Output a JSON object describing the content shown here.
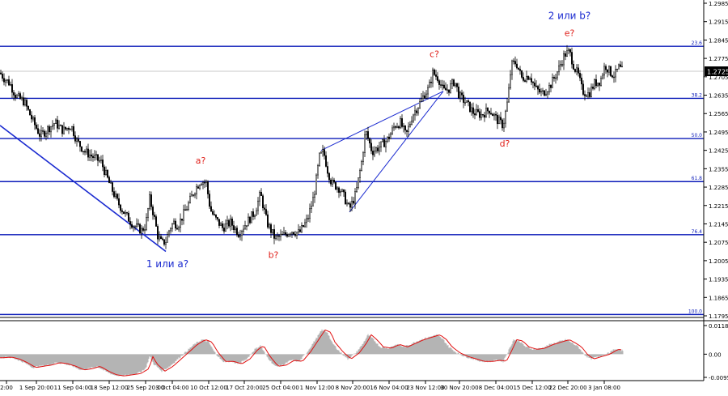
{
  "colors": {
    "background": "#ffffff",
    "candles": "#000000",
    "fib_lines": "#0a1ab8",
    "trendlines": "#1a2ad0",
    "wave_labels_red": "#e0201a",
    "wave_labels_blue": "#1a2ad0",
    "oscillator_hist": "#b4b4b4",
    "oscillator_signal": "#e01010",
    "current_price_bg": "#000000"
  },
  "chart_data": [
    {
      "type": "candlestick",
      "title": "",
      "ylim": [
        1.1795,
        1.2985
      ],
      "grid": false,
      "y_ticks": [
        "1.2985",
        "1.2915",
        "1.2845",
        "1.2775",
        "1.2705",
        "1.2635",
        "1.2565",
        "1.2495",
        "1.2425",
        "1.2355",
        "1.2285",
        "1.2215",
        "1.2145",
        "1.2075",
        "1.2005",
        "1.1935",
        "1.1865",
        "1.1795"
      ],
      "x_ticks": [
        "2:00",
        "1 Sep 20:00",
        "11 Sep 04:00",
        "18 Sep 12:00",
        "25 Sep 20:00",
        "3 Oct 04:00",
        "10 Oct 12:00",
        "17 Oct 20:00",
        "25 Oct 04:00",
        "1 Nov 12:00",
        "8 Nov 20:00",
        "16 Nov 04:00",
        "23 Nov 12:00",
        "30 Nov 20:00",
        "8 Dec 04:00",
        "15 Dec 12:00",
        "22 Dec 20:00",
        "3 Jan 08:00"
      ],
      "current_price": "1.2725",
      "fib_levels": [
        {
          "label": "23.6",
          "price": 1.2821
        },
        {
          "label": "38.2",
          "price": 1.2623
        },
        {
          "label": "50.0",
          "price": 1.247
        },
        {
          "label": "61.8",
          "price": 1.2306
        },
        {
          "label": "76.4",
          "price": 1.2104
        },
        {
          "label": "100.0",
          "price": 1.18
        }
      ],
      "wave_labels": [
        {
          "text": "1 или a?",
          "color": "blue"
        },
        {
          "text": "a?",
          "color": "red"
        },
        {
          "text": "b?",
          "color": "red"
        },
        {
          "text": "c?",
          "color": "red"
        },
        {
          "text": "d?",
          "color": "red"
        },
        {
          "text": "2 или b?",
          "color": "blue"
        },
        {
          "text": "e?",
          "color": "red"
        }
      ],
      "path": [
        [
          0,
          1.272
        ],
        [
          5,
          1.27
        ],
        [
          12,
          1.268
        ],
        [
          20,
          1.263
        ],
        [
          30,
          1.261
        ],
        [
          40,
          1.254
        ],
        [
          50,
          1.248
        ],
        [
          60,
          1.251
        ],
        [
          68,
          1.253
        ],
        [
          78,
          1.25
        ],
        [
          88,
          1.252
        ],
        [
          95,
          1.246
        ],
        [
          105,
          1.242
        ],
        [
          115,
          1.24
        ],
        [
          125,
          1.238
        ],
        [
          135,
          1.23
        ],
        [
          145,
          1.223
        ],
        [
          155,
          1.218
        ],
        [
          165,
          1.214
        ],
        [
          175,
          1.212
        ],
        [
          180,
          1.214
        ],
        [
          185,
          1.224
        ],
        [
          190,
          1.218
        ],
        [
          195,
          1.21
        ],
        [
          200,
          1.207
        ],
        [
          205,
          1.208
        ],
        [
          210,
          1.213
        ],
        [
          215,
          1.215
        ],
        [
          220,
          1.214
        ],
        [
          230,
          1.22
        ],
        [
          240,
          1.227
        ],
        [
          248,
          1.231
        ],
        [
          255,
          1.23
        ],
        [
          260,
          1.22
        ],
        [
          265,
          1.217
        ],
        [
          275,
          1.213
        ],
        [
          285,
          1.215
        ],
        [
          295,
          1.211
        ],
        [
          305,
          1.215
        ],
        [
          315,
          1.219
        ],
        [
          322,
          1.226
        ],
        [
          330,
          1.215
        ],
        [
          340,
          1.209
        ],
        [
          350,
          1.21
        ],
        [
          360,
          1.212
        ],
        [
          370,
          1.211
        ],
        [
          380,
          1.216
        ],
        [
          388,
          1.225
        ],
        [
          395,
          1.24
        ],
        [
          400,
          1.242
        ],
        [
          405,
          1.235
        ],
        [
          410,
          1.23
        ],
        [
          415,
          1.229
        ],
        [
          420,
          1.228
        ],
        [
          425,
          1.225
        ],
        [
          432,
          1.22
        ],
        [
          440,
          1.226
        ],
        [
          447,
          1.238
        ],
        [
          452,
          1.25
        ],
        [
          460,
          1.242
        ],
        [
          470,
          1.244
        ],
        [
          480,
          1.247
        ],
        [
          488,
          1.252
        ],
        [
          495,
          1.253
        ],
        [
          502,
          1.248
        ],
        [
          510,
          1.256
        ],
        [
          518,
          1.26
        ],
        [
          525,
          1.264
        ],
        [
          530,
          1.266
        ],
        [
          535,
          1.272
        ],
        [
          542,
          1.27
        ],
        [
          548,
          1.265
        ],
        [
          555,
          1.266
        ],
        [
          562,
          1.269
        ],
        [
          568,
          1.263
        ],
        [
          575,
          1.261
        ],
        [
          585,
          1.257
        ],
        [
          595,
          1.256
        ],
        [
          605,
          1.258
        ],
        [
          615,
          1.254
        ],
        [
          622,
          1.252
        ],
        [
          628,
          1.262
        ],
        [
          632,
          1.275
        ],
        [
          638,
          1.276
        ],
        [
          645,
          1.27
        ],
        [
          655,
          1.271
        ],
        [
          662,
          1.266
        ],
        [
          670,
          1.264
        ],
        [
          680,
          1.267
        ],
        [
          690,
          1.273
        ],
        [
          698,
          1.279
        ],
        [
          704,
          1.28
        ],
        [
          710,
          1.274
        ],
        [
          715,
          1.271
        ],
        [
          720,
          1.265
        ],
        [
          728,
          1.264
        ],
        [
          735,
          1.268
        ],
        [
          742,
          1.269
        ],
        [
          748,
          1.275
        ],
        [
          755,
          1.272
        ],
        [
          760,
          1.271
        ],
        [
          765,
          1.274
        ],
        [
          770,
          1.2725
        ]
      ]
    },
    {
      "type": "histogram_oscillator",
      "ylim": [
        -0.00959,
        0.01183
      ],
      "y_ticks": [
        "0.01183",
        "0.00",
        "-0.00959"
      ],
      "series": [
        [
          0,
          -0.0015
        ],
        [
          10,
          -0.0012
        ],
        [
          20,
          -0.002
        ],
        [
          30,
          -0.0035
        ],
        [
          40,
          -0.0055
        ],
        [
          50,
          -0.005
        ],
        [
          60,
          -0.0045
        ],
        [
          70,
          -0.0035
        ],
        [
          80,
          -0.004
        ],
        [
          90,
          -0.005
        ],
        [
          100,
          -0.0065
        ],
        [
          110,
          -0.006
        ],
        [
          120,
          -0.005
        ],
        [
          130,
          -0.007
        ],
        [
          140,
          -0.0085
        ],
        [
          150,
          -0.009
        ],
        [
          160,
          -0.0085
        ],
        [
          170,
          -0.008
        ],
        [
          180,
          -0.006
        ],
        [
          185,
          -0.001
        ],
        [
          190,
          -0.004
        ],
        [
          200,
          -0.007
        ],
        [
          210,
          -0.005
        ],
        [
          220,
          -0.002
        ],
        [
          230,
          0.001
        ],
        [
          240,
          0.004
        ],
        [
          250,
          0.006
        ],
        [
          258,
          0.005
        ],
        [
          265,
          0.001
        ],
        [
          275,
          -0.003
        ],
        [
          285,
          -0.003
        ],
        [
          295,
          -0.004
        ],
        [
          305,
          -0.002
        ],
        [
          315,
          0.002
        ],
        [
          322,
          0.0035
        ],
        [
          330,
          -0.001
        ],
        [
          340,
          -0.005
        ],
        [
          350,
          -0.0045
        ],
        [
          360,
          -0.0025
        ],
        [
          370,
          -0.003
        ],
        [
          380,
          0.001
        ],
        [
          390,
          0.006
        ],
        [
          398,
          0.01
        ],
        [
          405,
          0.009
        ],
        [
          410,
          0.005
        ],
        [
          420,
          0.001
        ],
        [
          430,
          -0.002
        ],
        [
          440,
          0.0005
        ],
        [
          448,
          0.004
        ],
        [
          455,
          0.008
        ],
        [
          462,
          0.006
        ],
        [
          470,
          0.003
        ],
        [
          480,
          0.0025
        ],
        [
          490,
          0.004
        ],
        [
          500,
          0.003
        ],
        [
          510,
          0.0045
        ],
        [
          520,
          0.006
        ],
        [
          530,
          0.007
        ],
        [
          540,
          0.008
        ],
        [
          548,
          0.006
        ],
        [
          555,
          0.003
        ],
        [
          565,
          0.0005
        ],
        [
          575,
          -0.001
        ],
        [
          585,
          -0.002
        ],
        [
          595,
          -0.003
        ],
        [
          605,
          -0.003
        ],
        [
          615,
          -0.0025
        ],
        [
          622,
          -0.003
        ],
        [
          628,
          0.001
        ],
        [
          635,
          0.006
        ],
        [
          642,
          0.0055
        ],
        [
          650,
          0.003
        ],
        [
          660,
          0.002
        ],
        [
          670,
          0.0025
        ],
        [
          680,
          0.004
        ],
        [
          690,
          0.005
        ],
        [
          700,
          0.006
        ],
        [
          708,
          0.0045
        ],
        [
          715,
          0.003
        ],
        [
          722,
          0.0
        ],
        [
          730,
          -0.002
        ],
        [
          740,
          -0.001
        ],
        [
          750,
          0.0
        ],
        [
          760,
          0.002
        ],
        [
          770,
          0.0015
        ]
      ]
    }
  ]
}
